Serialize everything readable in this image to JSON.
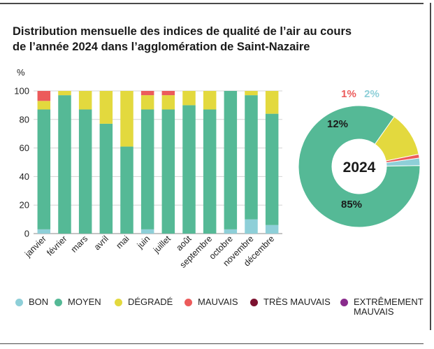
{
  "title_lines": [
    "Distribution mensuelle des indices de qualité de l’air au cours",
    "de l’année 2024 dans l’agglomération de Saint-Nazaire"
  ],
  "colors": {
    "BON": "#8ecfd8",
    "MOYEN": "#55b996",
    "DÉGRADÉ": "#e3d93e",
    "MAUVAIS": "#ec5b5b",
    "TRÈS MAUVAIS": "#7c1230",
    "EXTRÊMEMENT MAUVAIS": "#892b8c"
  },
  "chart_data": [
    {
      "type": "bar",
      "stacked": true,
      "ylabel": "%",
      "ylim": [
        0,
        100
      ],
      "yticks": [
        0,
        20,
        40,
        60,
        80,
        100
      ],
      "grid": true,
      "categories": [
        "janvier",
        "février",
        "mars",
        "avril",
        "mai",
        "juin",
        "juillet",
        "août",
        "septembre",
        "octobre",
        "novembre",
        "décembre"
      ],
      "series": [
        {
          "name": "BON",
          "values": [
            3,
            0,
            0,
            0,
            0,
            3,
            0,
            0,
            0,
            3,
            10,
            6
          ]
        },
        {
          "name": "MOYEN",
          "values": [
            84,
            97,
            87,
            77,
            61,
            84,
            87,
            90,
            87,
            97,
            87,
            78
          ]
        },
        {
          "name": "DÉGRADÉ",
          "values": [
            6,
            3,
            13,
            23,
            39,
            10,
            10,
            10,
            13,
            0,
            3,
            16
          ]
        },
        {
          "name": "MAUVAIS",
          "values": [
            7,
            0,
            0,
            0,
            0,
            3,
            3,
            0,
            0,
            0,
            0,
            0
          ]
        },
        {
          "name": "TRÈS MAUVAIS",
          "values": [
            0,
            0,
            0,
            0,
            0,
            0,
            0,
            0,
            0,
            0,
            0,
            0
          ]
        },
        {
          "name": "EXTRÊMEMENT MAUVAIS",
          "values": [
            0,
            0,
            0,
            0,
            0,
            0,
            0,
            0,
            0,
            0,
            0,
            0
          ]
        }
      ]
    },
    {
      "type": "pie",
      "donut": true,
      "center_label": "2024",
      "slices": [
        {
          "name": "BON",
          "value": 2,
          "label": "2%"
        },
        {
          "name": "MOYEN",
          "value": 85,
          "label": "85%"
        },
        {
          "name": "DÉGRADÉ",
          "value": 12,
          "label": "12%"
        },
        {
          "name": "MAUVAIS",
          "value": 1,
          "label": "1%"
        }
      ]
    }
  ],
  "legend": [
    {
      "name": "BON",
      "label": "BON"
    },
    {
      "name": "MOYEN",
      "label": "MOYEN"
    },
    {
      "name": "DÉGRADÉ",
      "label": "DÉGRADÉ"
    },
    {
      "name": "MAUVAIS",
      "label": "MAUVAIS"
    },
    {
      "name": "TRÈS MAUVAIS",
      "label": "TRÈS MAUVAIS"
    },
    {
      "name": "EXTRÊMEMENT MAUVAIS",
      "label": "EXTRÊMEMENT MAUVAIS"
    }
  ]
}
